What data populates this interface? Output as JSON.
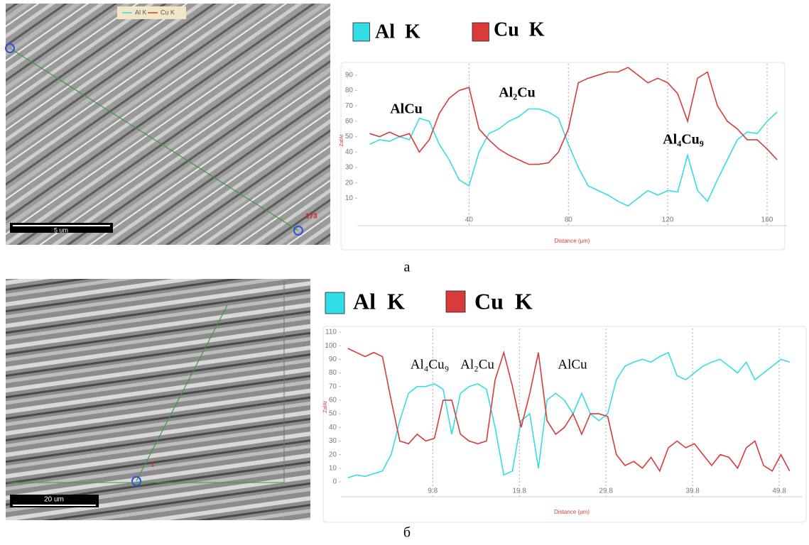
{
  "chart_data": [
    {
      "type": "line",
      "caption": "а",
      "xlabel": "Distance (µm)",
      "ylabel": "ZafAt",
      "x": [
        0,
        4,
        8,
        12,
        16,
        20,
        24,
        28,
        32,
        36,
        40,
        44,
        48,
        52,
        56,
        60,
        64,
        68,
        72,
        76,
        80,
        84,
        88,
        92,
        96,
        100,
        104,
        108,
        112,
        116,
        120,
        124,
        128,
        132,
        136,
        140,
        144,
        148,
        152,
        156,
        160,
        164
      ],
      "series": [
        {
          "name": "Al  K",
          "color": "#33dde6",
          "values": [
            45,
            48,
            47,
            50,
            48,
            62,
            60,
            45,
            35,
            22,
            18,
            40,
            52,
            55,
            60,
            63,
            68,
            68,
            66,
            62,
            45,
            30,
            18,
            15,
            12,
            8,
            5,
            10,
            15,
            12,
            15,
            14,
            38,
            15,
            8,
            22,
            35,
            48,
            53,
            52,
            60,
            66
          ]
        },
        {
          "name": "Cu  K",
          "color": "#d93a3a",
          "values": [
            52,
            50,
            53,
            50,
            52,
            40,
            48,
            65,
            75,
            80,
            82,
            55,
            48,
            42,
            38,
            35,
            32,
            32,
            33,
            40,
            55,
            85,
            88,
            90,
            92,
            92,
            95,
            90,
            85,
            88,
            85,
            78,
            60,
            88,
            92,
            70,
            60,
            55,
            48,
            48,
            42,
            35
          ]
        }
      ],
      "annotations": [
        "AlCu",
        "Al₂Cu",
        "Al₄Cu₉"
      ],
      "xlim": [
        -5,
        168
      ],
      "ylim": [
        0,
        95
      ],
      "xticks": [
        40,
        80,
        120,
        160
      ],
      "yticks": [
        10,
        20,
        30,
        40,
        50,
        60,
        70,
        80,
        90
      ],
      "grid": true
    },
    {
      "type": "line",
      "caption": "б",
      "xlabel": "Distance (µm)",
      "ylabel": "ZafAt",
      "x": [
        0,
        1,
        2,
        3,
        4,
        5,
        6,
        7,
        8,
        9,
        10,
        11,
        12,
        13,
        14,
        15,
        16,
        17,
        18,
        19,
        20,
        21,
        22,
        23,
        24,
        25,
        26,
        27,
        28,
        29,
        30,
        31,
        32,
        33,
        34,
        35,
        36,
        37,
        38,
        39,
        40,
        41,
        42,
        43,
        44,
        45,
        46,
        47,
        48,
        49,
        50,
        51
      ],
      "series": [
        {
          "name": "Al  K",
          "color": "#33dde6",
          "values": [
            3,
            5,
            4,
            6,
            8,
            20,
            45,
            65,
            70,
            70,
            72,
            68,
            35,
            65,
            70,
            72,
            68,
            40,
            5,
            8,
            45,
            50,
            10,
            60,
            65,
            60,
            50,
            65,
            50,
            45,
            50,
            75,
            85,
            88,
            90,
            88,
            92,
            95,
            78,
            75,
            80,
            85,
            88,
            90,
            85,
            80,
            88,
            75,
            80,
            85,
            90,
            88
          ]
        },
        {
          "name": "Cu  K",
          "color": "#d93a3a",
          "values": [
            98,
            95,
            92,
            95,
            92,
            60,
            30,
            28,
            35,
            30,
            32,
            60,
            60,
            35,
            30,
            28,
            30,
            75,
            95,
            70,
            40,
            65,
            95,
            45,
            35,
            40,
            50,
            35,
            50,
            50,
            48,
            20,
            12,
            15,
            10,
            18,
            8,
            25,
            30,
            25,
            28,
            20,
            12,
            20,
            18,
            10,
            25,
            30,
            12,
            8,
            20,
            8
          ]
        }
      ],
      "annotations": [
        "Al₄Cu₉",
        "Al₂Cu",
        "AlCu"
      ],
      "xlim": [
        -0.8,
        52.5
      ],
      "ylim": [
        0,
        110
      ],
      "xticks": [
        9.8,
        19.8,
        29.8,
        39.8,
        49.8
      ],
      "yticks": [
        0,
        10,
        20,
        30,
        40,
        50,
        60,
        70,
        80,
        90,
        100,
        110
      ],
      "grid": true
    }
  ],
  "micrographs": [
    {
      "legend": [
        "Al K",
        "Cu K"
      ],
      "scale_bar": "5 um",
      "marker": "173"
    },
    {
      "scale_bar": "20 um",
      "marker": "1"
    }
  ]
}
